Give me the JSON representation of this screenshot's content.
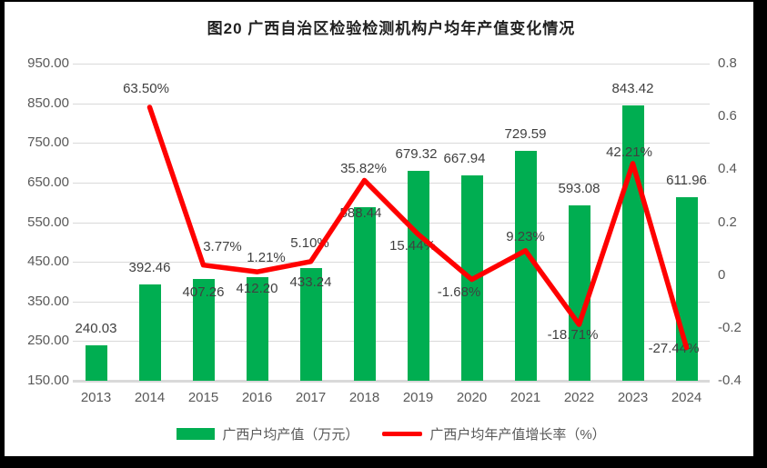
{
  "title": "图20 广西自治区检验检测机构户均年产值变化情况",
  "colors": {
    "bar": "#00AE51",
    "line": "#FF0000",
    "grid": "#D9D9D9",
    "axis_text": "#595959",
    "data_label_text": "#404040",
    "background": "#FFFFFF",
    "border": "#000000"
  },
  "chart_data": {
    "type": "bar",
    "subtype": "combo-bar-line",
    "title": "图20 广西自治区检验检测机构户均年产值变化情况",
    "categories": [
      "2013",
      "2014",
      "2015",
      "2016",
      "2017",
      "2018",
      "2019",
      "2020",
      "2021",
      "2022",
      "2023",
      "2024"
    ],
    "series": [
      {
        "name": "广西户均产值（万元）",
        "kind": "bar",
        "axis": "left",
        "color": "#00AE51",
        "values": [
          240.03,
          392.46,
          407.26,
          412.2,
          433.24,
          588.44,
          679.32,
          667.94,
          729.59,
          593.08,
          843.42,
          611.96
        ],
        "labels": [
          "240.03",
          "392.46",
          "407.26",
          "412.20",
          "433.24",
          "588.44",
          "679.32",
          "667.94",
          "729.59",
          "593.08",
          "843.42",
          "611.96"
        ]
      },
      {
        "name": "广西户均年产值增长率（%）",
        "kind": "line",
        "axis": "right",
        "color": "#FF0000",
        "values": [
          null,
          0.635,
          0.0377,
          0.0121,
          0.051,
          0.3582,
          0.1544,
          -0.0168,
          0.0923,
          -0.1871,
          0.4221,
          -0.2744
        ],
        "labels": [
          "",
          "63.50%",
          "3.77%",
          "1.21%",
          "5.10%",
          "35.82%",
          "15.44%",
          "-1.68%",
          "9.23%",
          "-18.71%",
          "42.21%",
          "-27.44%"
        ]
      }
    ],
    "left_axis": {
      "min": 150,
      "max": 950,
      "tick_values": [
        950,
        850,
        750,
        650,
        550,
        450,
        350,
        250,
        150
      ],
      "tick_labels": [
        "950.00",
        "850.00",
        "750.00",
        "650.00",
        "550.00",
        "450.00",
        "350.00",
        "250.00",
        "150.00"
      ]
    },
    "right_axis": {
      "min": -0.4,
      "max": 0.8,
      "tick_values": [
        0.8,
        0.6,
        0.4,
        0.2,
        0,
        -0.2,
        -0.4
      ],
      "tick_labels": [
        "0.8",
        "0.6",
        "0.4",
        "0.2",
        "0",
        "-0.2",
        "-0.4"
      ]
    },
    "grid": true,
    "legend_position": "bottom"
  }
}
